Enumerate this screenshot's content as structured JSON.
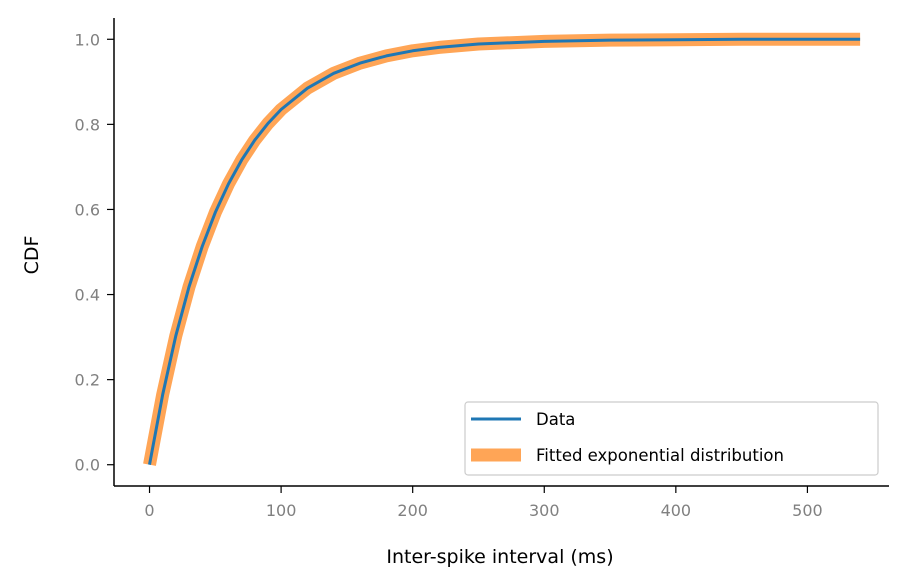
{
  "chart_data": {
    "type": "line",
    "xlabel": "Inter-spike interval (ms)",
    "ylabel": "CDF",
    "xlim": [
      -27,
      562
    ],
    "ylim": [
      -0.05,
      1.05
    ],
    "xticks": [
      0,
      100,
      200,
      300,
      400,
      500
    ],
    "xtick_labels": [
      "0",
      "100",
      "200",
      "300",
      "400",
      "500"
    ],
    "yticks": [
      0.0,
      0.2,
      0.4,
      0.6,
      0.8,
      1.0
    ],
    "ytick_labels": [
      "0.0",
      "0.2",
      "0.4",
      "0.6",
      "0.8",
      "1.0"
    ],
    "grid": false,
    "legend_position": "lower-right",
    "series": [
      {
        "name": "Data",
        "color": "#1f77b4",
        "x": [
          0,
          10,
          20,
          30,
          40,
          50,
          60,
          70,
          80,
          90,
          100,
          120,
          140,
          160,
          180,
          200,
          220,
          250,
          300,
          350,
          400,
          450,
          500,
          540
        ],
        "y": [
          0.0,
          0.165,
          0.303,
          0.418,
          0.513,
          0.593,
          0.66,
          0.716,
          0.763,
          0.802,
          0.835,
          0.885,
          0.92,
          0.944,
          0.961,
          0.973,
          0.981,
          0.989,
          0.995,
          0.998,
          0.999,
          1.0,
          1.0,
          1.0
        ]
      },
      {
        "name": "Fitted exponential distribution",
        "color": "#ffa556",
        "x": [
          0,
          10,
          20,
          30,
          40,
          50,
          60,
          70,
          80,
          90,
          100,
          120,
          140,
          160,
          180,
          200,
          220,
          250,
          300,
          350,
          400,
          450,
          500,
          540
        ],
        "y": [
          0.0,
          0.165,
          0.303,
          0.418,
          0.513,
          0.593,
          0.66,
          0.716,
          0.763,
          0.802,
          0.835,
          0.885,
          0.92,
          0.944,
          0.961,
          0.973,
          0.981,
          0.989,
          0.995,
          0.998,
          0.999,
          1.0,
          1.0,
          1.0
        ]
      }
    ]
  }
}
